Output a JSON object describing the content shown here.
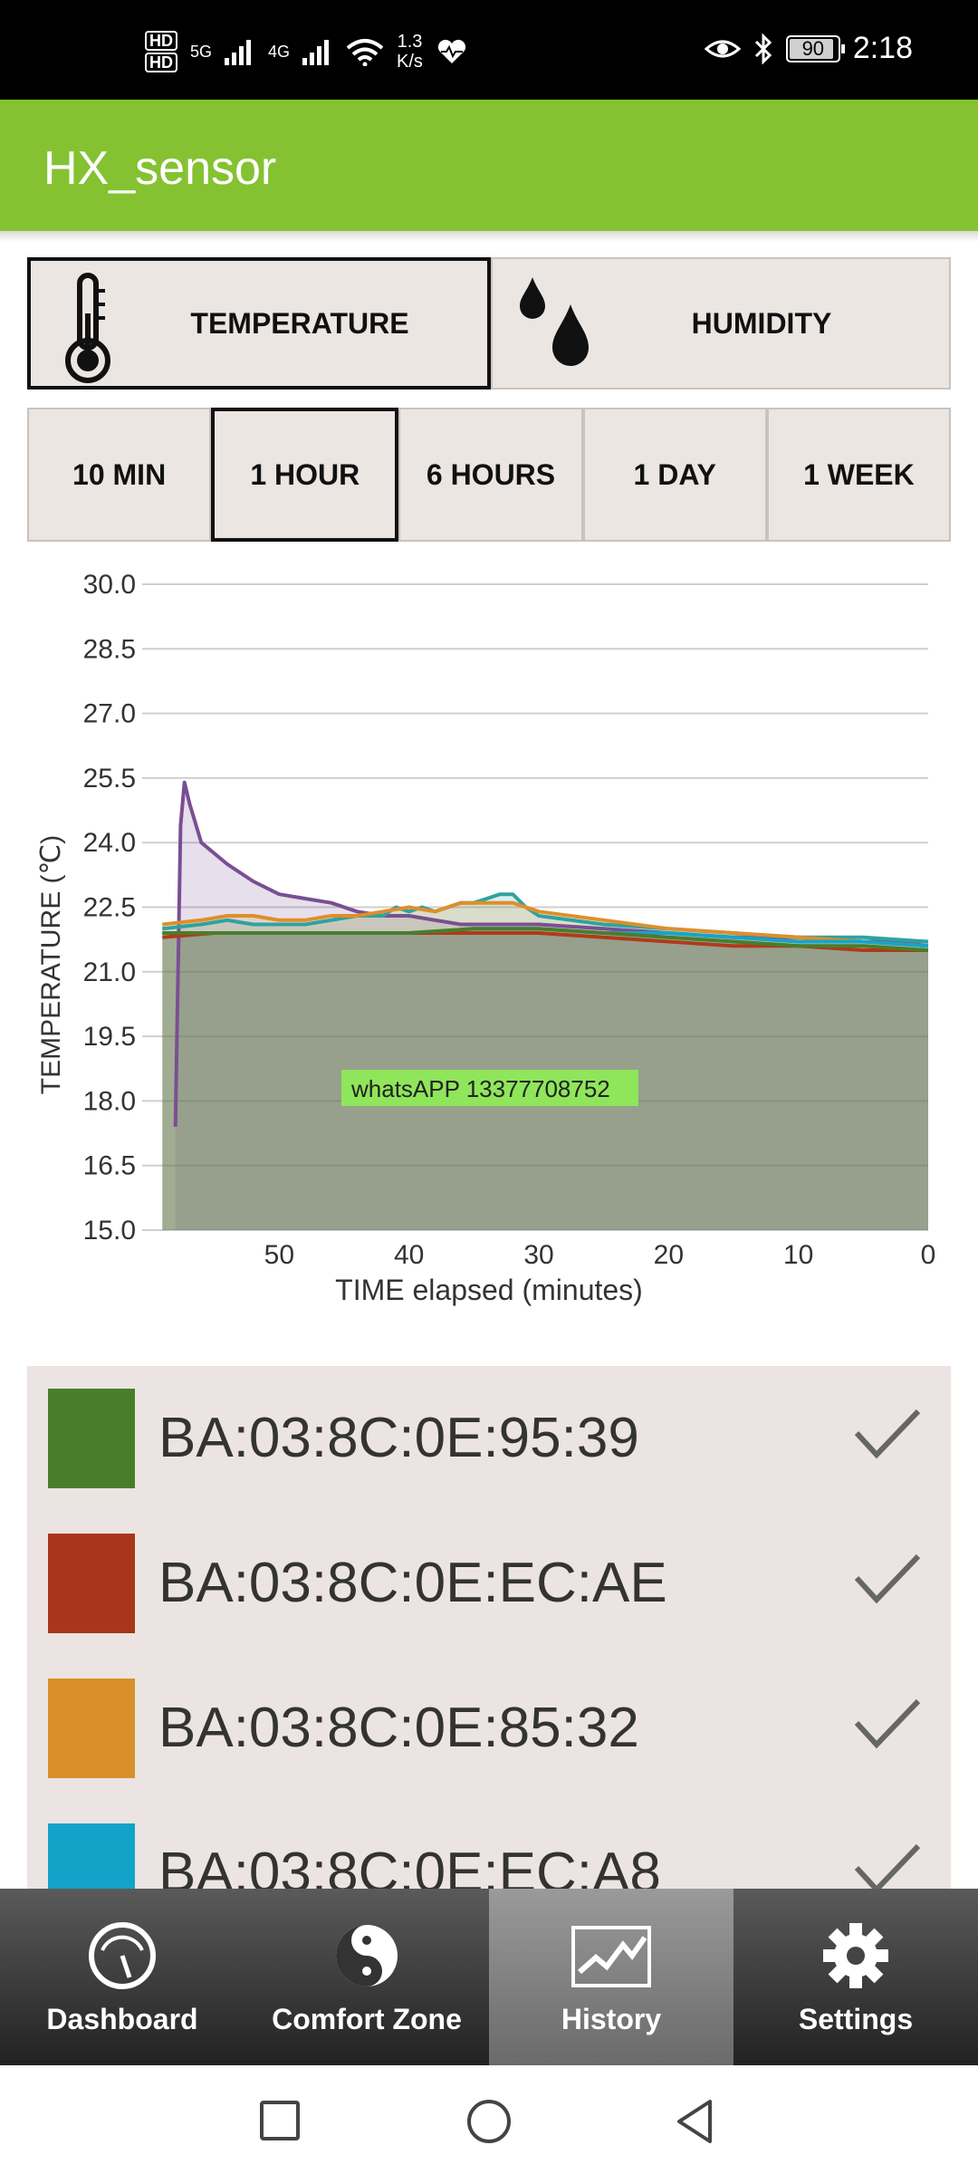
{
  "status_bar": {
    "hd1": "HD",
    "hd2": "HD",
    "net1": "5G",
    "net2": "4G",
    "speed_value": "1.3",
    "speed_unit": "K/s",
    "battery": "90",
    "time": "2:18"
  },
  "app": {
    "title": "HX_sensor"
  },
  "metric_tabs": [
    {
      "label": "TEMPERATURE",
      "icon": "thermometer-icon",
      "selected": true
    },
    {
      "label": "HUMIDITY",
      "icon": "water-drops-icon",
      "selected": false
    }
  ],
  "time_ranges": [
    {
      "label": "10 MIN",
      "selected": false
    },
    {
      "label": "1 HOUR",
      "selected": true
    },
    {
      "label": "6 HOURS",
      "selected": false
    },
    {
      "label": "1 DAY",
      "selected": false
    },
    {
      "label": "1 WEEK",
      "selected": false
    }
  ],
  "chart_data": {
    "type": "area",
    "xlabel": "TIME elapsed (minutes)",
    "ylabel": "TEMPERATURE (℃)",
    "x_ticks": [
      "50",
      "40",
      "30",
      "20",
      "10",
      "0"
    ],
    "y_ticks": [
      "30.0",
      "28.5",
      "27.0",
      "25.5",
      "24.0",
      "22.5",
      "21.0",
      "19.5",
      "18.0",
      "16.5",
      "15.0"
    ],
    "xlim": [
      60,
      0
    ],
    "ylim": [
      15.0,
      30.0
    ],
    "grid": true,
    "x_reversed": true,
    "watermark": "whatsAPP  13377708752",
    "series": [
      {
        "color": "#7a4f92",
        "x": [
          58,
          57.6,
          57.3,
          56.9,
          56,
          54,
          52,
          50,
          48,
          46,
          44,
          42,
          40,
          38,
          36,
          34,
          32,
          30,
          25,
          20,
          15,
          10,
          5,
          0
        ],
        "values": [
          17.4,
          24.4,
          25.4,
          24.9,
          24.0,
          23.5,
          23.1,
          22.8,
          22.7,
          22.6,
          22.4,
          22.3,
          22.3,
          22.2,
          22.1,
          22.1,
          22.1,
          22.1,
          22.0,
          21.9,
          21.8,
          21.8,
          21.7,
          21.7
        ]
      },
      {
        "color": "#2ea3a0",
        "x": [
          59,
          56,
          54,
          52,
          50,
          48,
          46,
          44,
          42,
          41,
          40,
          39,
          38,
          37,
          36,
          35,
          34,
          33,
          32,
          31,
          30,
          25,
          20,
          15,
          10,
          5,
          0
        ],
        "values": [
          22.0,
          22.1,
          22.2,
          22.1,
          22.1,
          22.1,
          22.2,
          22.3,
          22.3,
          22.5,
          22.4,
          22.5,
          22.4,
          22.5,
          22.6,
          22.6,
          22.7,
          22.8,
          22.8,
          22.5,
          22.3,
          22.1,
          22.0,
          21.9,
          21.8,
          21.8,
          21.7
        ]
      },
      {
        "color": "#de8f2a",
        "x": [
          59,
          56,
          54,
          52,
          50,
          48,
          46,
          44,
          42,
          40,
          38,
          36,
          34,
          32,
          30,
          25,
          20,
          15,
          10,
          5,
          0
        ],
        "values": [
          22.1,
          22.2,
          22.3,
          22.3,
          22.2,
          22.2,
          22.3,
          22.3,
          22.4,
          22.5,
          22.4,
          22.6,
          22.6,
          22.6,
          22.4,
          22.2,
          22.0,
          21.9,
          21.8,
          21.7,
          21.6
        ]
      },
      {
        "color": "#15a5c8",
        "x": [
          59,
          55,
          50,
          45,
          40,
          35,
          30,
          25,
          20,
          15,
          10,
          5,
          0
        ],
        "values": [
          21.9,
          21.9,
          21.9,
          21.9,
          21.9,
          22.0,
          22.0,
          21.9,
          21.9,
          21.8,
          21.7,
          21.7,
          21.6
        ]
      },
      {
        "color": "#b03a1a",
        "x": [
          59,
          55,
          50,
          45,
          40,
          35,
          30,
          25,
          20,
          15,
          10,
          5,
          0
        ],
        "values": [
          21.8,
          21.9,
          21.9,
          21.9,
          21.9,
          21.9,
          21.9,
          21.8,
          21.7,
          21.6,
          21.6,
          21.5,
          21.5
        ]
      },
      {
        "color": "#4a7d2a",
        "x": [
          59,
          55,
          50,
          45,
          40,
          35,
          30,
          25,
          20,
          15,
          10,
          5,
          0
        ],
        "values": [
          21.9,
          21.9,
          21.9,
          21.9,
          21.9,
          22.0,
          22.0,
          21.9,
          21.8,
          21.7,
          21.6,
          21.6,
          21.5
        ]
      }
    ]
  },
  "devices": [
    {
      "name": "BA:03:8C:0E:95:39",
      "color": "#4a7d2a",
      "checked": true
    },
    {
      "name": "BA:03:8C:0E:EC:AE",
      "color": "#a9351a",
      "checked": true
    },
    {
      "name": "BA:03:8C:0E:85:32",
      "color": "#d9902a",
      "checked": true
    },
    {
      "name": "BA:03:8C:0E:EC:A8",
      "color": "#13a3c9",
      "checked": true
    }
  ],
  "bottom_nav": [
    {
      "label": "Dashboard",
      "icon": "dashboard-gauge-icon",
      "active": false
    },
    {
      "label": "Comfort Zone",
      "icon": "yin-yang-icon",
      "active": false
    },
    {
      "label": "History",
      "icon": "history-chart-icon",
      "active": true
    },
    {
      "label": "Settings",
      "icon": "gear-icon",
      "active": false
    }
  ],
  "system_nav": [
    "recents-square-icon",
    "home-circle-icon",
    "back-triangle-icon"
  ]
}
